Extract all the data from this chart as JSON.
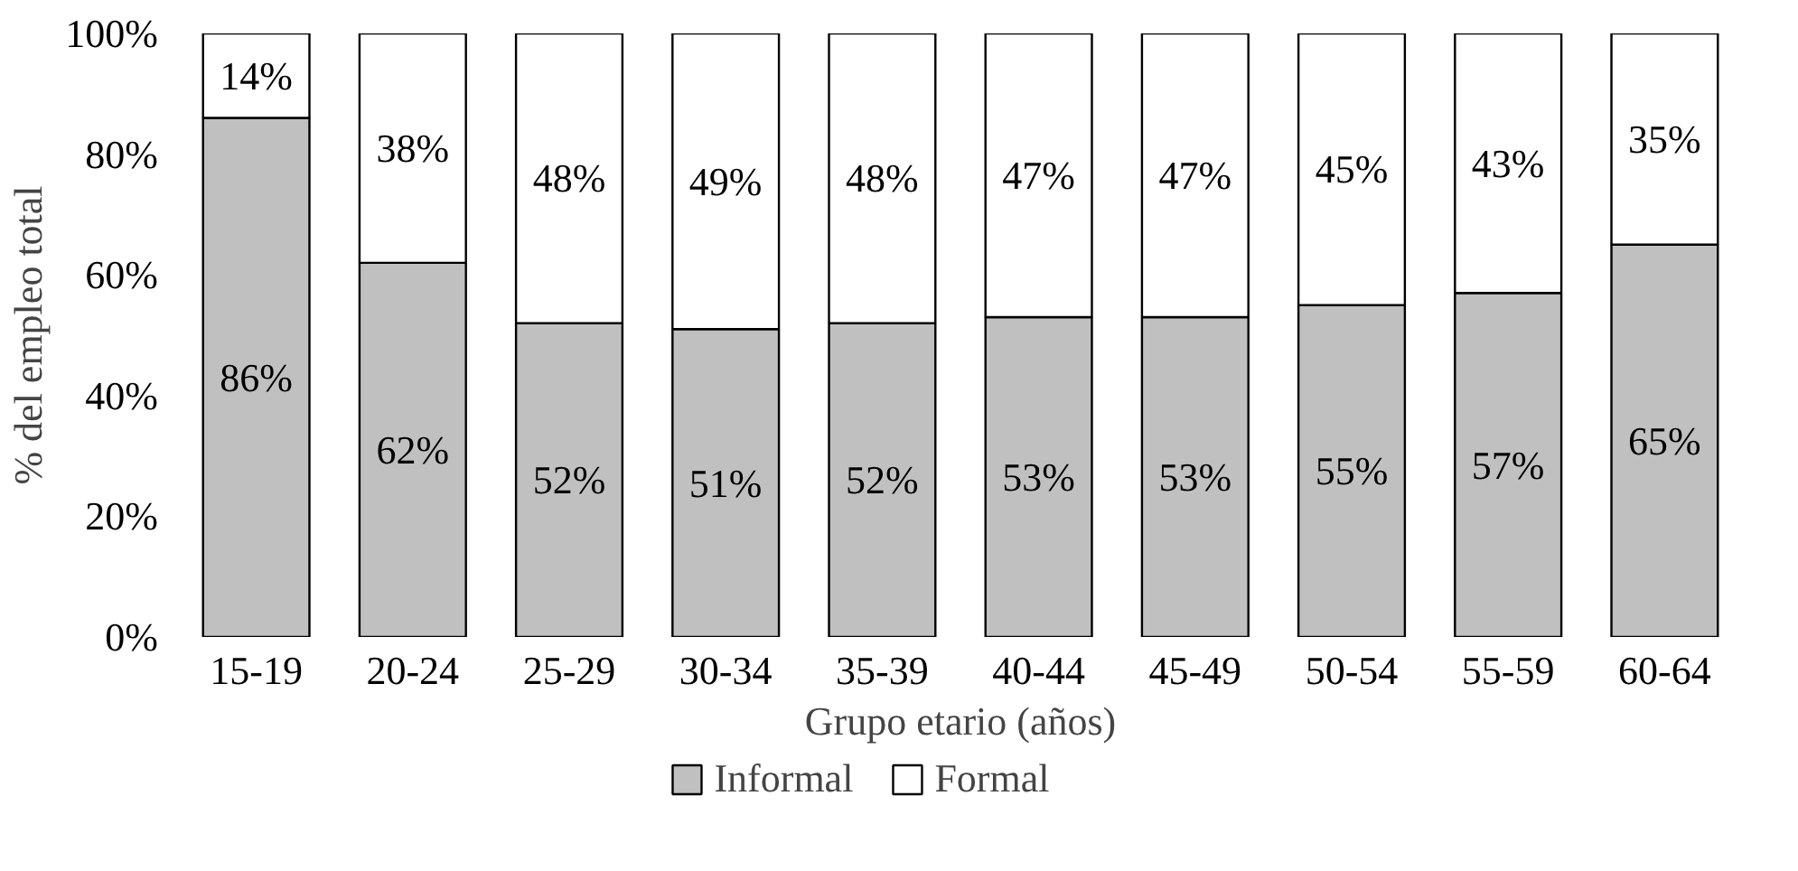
{
  "chart_data": {
    "type": "bar",
    "stacked": true,
    "xlabel": "Grupo etario (años)",
    "ylabel": "% del empleo total",
    "categories": [
      "15-19",
      "20-24",
      "25-29",
      "30-34",
      "35-39",
      "40-44",
      "45-49",
      "50-54",
      "55-59",
      "60-64"
    ],
    "series": [
      {
        "name": "Informal",
        "color": "#c0c0c0",
        "values": [
          86,
          62,
          52,
          51,
          52,
          53,
          53,
          55,
          57,
          65
        ],
        "value_labels": [
          "86%",
          "62%",
          "52%",
          "51%",
          "52%",
          "53%",
          "53%",
          "55%",
          "57%",
          "65%"
        ]
      },
      {
        "name": "Formal",
        "color": "#ffffff",
        "values": [
          14,
          38,
          48,
          49,
          48,
          47,
          47,
          45,
          43,
          35
        ],
        "value_labels": [
          "14%",
          "38%",
          "48%",
          "49%",
          "48%",
          "47%",
          "47%",
          "45%",
          "43%",
          "35%"
        ]
      }
    ],
    "ylim": [
      0,
      100
    ],
    "yticks": [
      {
        "value": 0,
        "label": "0%"
      },
      {
        "value": 20,
        "label": "20%"
      },
      {
        "value": 40,
        "label": "40%"
      },
      {
        "value": 60,
        "label": "60%"
      },
      {
        "value": 80,
        "label": "80%"
      },
      {
        "value": 100,
        "label": "100%"
      }
    ],
    "grid": false,
    "legend": "bottom"
  }
}
